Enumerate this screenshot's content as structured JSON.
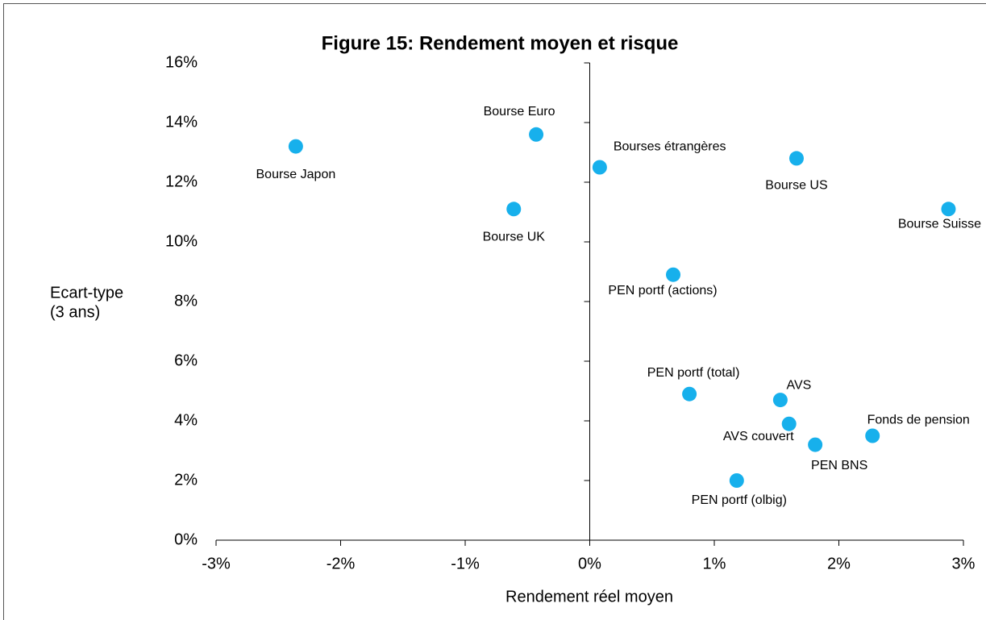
{
  "chart_data": {
    "type": "scatter",
    "title": "Figure 15: Rendement moyen et risque",
    "xlabel": "Rendement réel moyen",
    "ylabel": [
      "Ecart-type",
      "(3 ans)"
    ],
    "color": "#17b0ec",
    "labels": [
      "Bourse Japon",
      "Bourse Euro",
      "Bourses étrangères",
      "Bourse US",
      "Bourse Suisse",
      "Bourse UK",
      "PEN portf (actions)",
      "PEN portf (total)",
      "AVS",
      "AVS couvert",
      "PEN BNS",
      "Fonds de pension",
      "PEN portf (olbig)"
    ],
    "x": [
      -2.36,
      -0.43,
      0.08,
      1.66,
      2.88,
      -0.61,
      0.67,
      0.8,
      1.53,
      1.6,
      1.81,
      2.27,
      1.18
    ],
    "values": [
      13.2,
      13.6,
      12.5,
      12.8,
      11.1,
      11.1,
      8.9,
      4.9,
      4.7,
      3.9,
      3.2,
      3.5,
      2.0
    ],
    "xlim": [
      -3,
      3
    ],
    "xticks": [
      {
        "value": -3,
        "label": "-3%"
      },
      {
        "value": -2,
        "label": "-2%"
      },
      {
        "value": -1,
        "label": "-1%"
      },
      {
        "value": 0,
        "label": "0%"
      },
      {
        "value": 1,
        "label": "1%"
      },
      {
        "value": 2,
        "label": "2%"
      },
      {
        "value": 3,
        "label": "3%"
      }
    ],
    "ylim": [
      0,
      16
    ],
    "yticks": [
      {
        "value": 0,
        "label": "0%"
      },
      {
        "value": 2,
        "label": "2%"
      },
      {
        "value": 4,
        "label": "4%"
      },
      {
        "value": 6,
        "label": "6%"
      },
      {
        "value": 8,
        "label": "8%"
      },
      {
        "value": 10,
        "label": "10%"
      },
      {
        "value": 12,
        "label": "12%"
      },
      {
        "value": 14,
        "label": "14%"
      },
      {
        "value": 16,
        "label": "16%"
      }
    ]
  }
}
